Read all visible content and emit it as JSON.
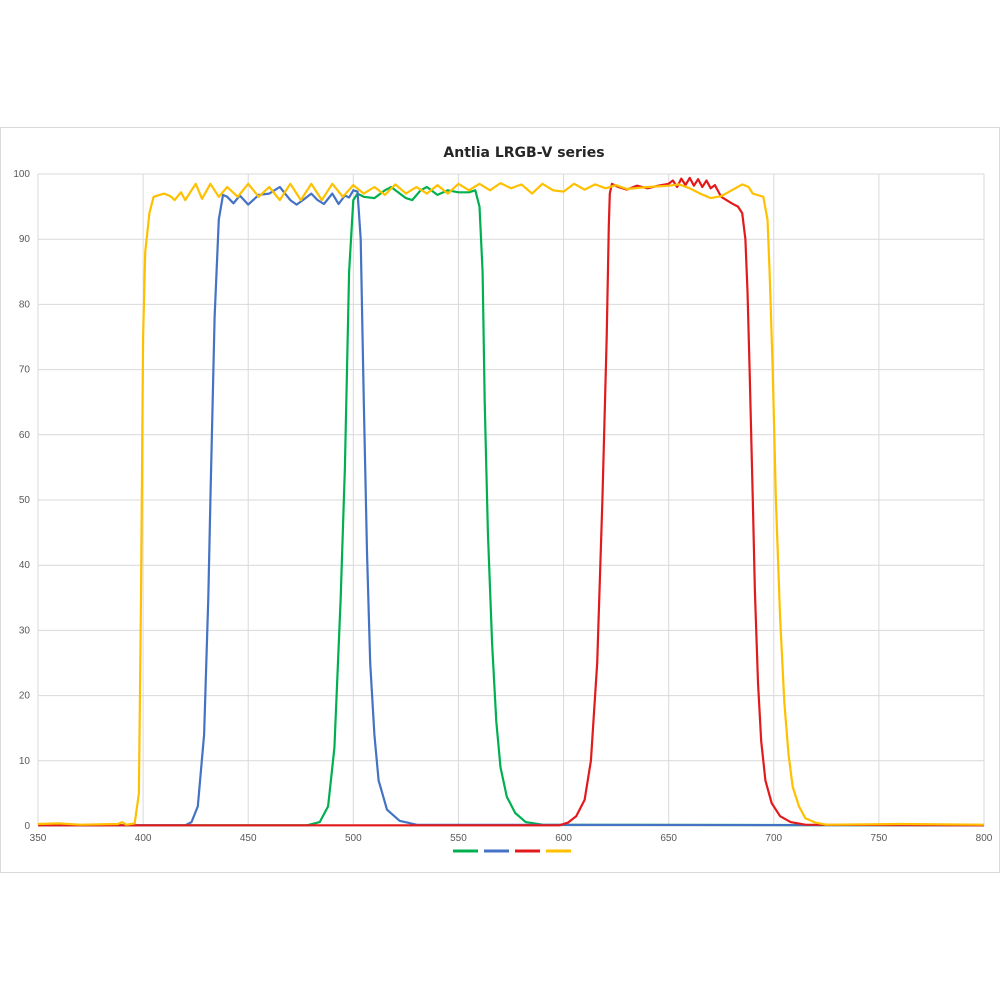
{
  "chart_data": {
    "type": "line",
    "title": "Antlia LRGB-V series",
    "xlabel": "",
    "ylabel": "",
    "xlim": [
      350,
      800
    ],
    "ylim": [
      0,
      100
    ],
    "xticks": [
      350,
      400,
      450,
      500,
      550,
      600,
      650,
      700,
      750,
      800
    ],
    "yticks": [
      0,
      10,
      20,
      30,
      40,
      50,
      60,
      70,
      80,
      90,
      100
    ],
    "grid": true,
    "legend": "bottom",
    "series": [
      {
        "color": "#00b050",
        "points": [
          [
            350,
            0.1
          ],
          [
            478,
            0.1
          ],
          [
            484,
            0.6
          ],
          [
            488,
            3
          ],
          [
            491,
            12
          ],
          [
            494,
            35
          ],
          [
            496,
            55
          ],
          [
            498,
            85
          ],
          [
            500,
            96
          ],
          [
            502,
            97
          ],
          [
            505,
            96.5
          ],
          [
            510,
            96.3
          ],
          [
            515,
            97.5
          ],
          [
            518,
            98
          ],
          [
            520,
            97.5
          ],
          [
            525,
            96.3
          ],
          [
            528,
            96
          ],
          [
            532,
            97.5
          ],
          [
            535,
            98
          ],
          [
            540,
            96.8
          ],
          [
            545,
            97.5
          ],
          [
            550,
            97.2
          ],
          [
            555,
            97.2
          ],
          [
            558,
            97.5
          ],
          [
            560,
            95
          ],
          [
            561.5,
            85
          ],
          [
            562.5,
            65
          ],
          [
            564,
            45
          ],
          [
            566,
            28
          ],
          [
            568,
            16
          ],
          [
            570,
            9
          ],
          [
            573,
            4.5
          ],
          [
            577,
            2
          ],
          [
            582,
            0.6
          ],
          [
            590,
            0.2
          ],
          [
            800,
            0.1
          ]
        ]
      },
      {
        "color": "#4472c4",
        "points": [
          [
            350,
            0.1
          ],
          [
            420,
            0.1
          ],
          [
            423,
            0.6
          ],
          [
            426,
            3
          ],
          [
            429,
            14
          ],
          [
            431,
            35
          ],
          [
            432,
            50
          ],
          [
            434,
            78
          ],
          [
            436,
            93
          ],
          [
            438,
            96.8
          ],
          [
            440,
            96.5
          ],
          [
            443,
            95.5
          ],
          [
            446,
            96.7
          ],
          [
            450,
            95.3
          ],
          [
            455,
            96.8
          ],
          [
            460,
            97
          ],
          [
            465,
            98
          ],
          [
            470,
            96
          ],
          [
            473,
            95.3
          ],
          [
            476,
            96
          ],
          [
            480,
            97
          ],
          [
            483,
            96
          ],
          [
            486,
            95.4
          ],
          [
            490,
            97
          ],
          [
            493,
            95.4
          ],
          [
            496,
            96.7
          ],
          [
            498,
            96.4
          ],
          [
            500,
            97.5
          ],
          [
            502,
            97.3
          ],
          [
            503.5,
            90
          ],
          [
            505,
            65
          ],
          [
            506.5,
            42
          ],
          [
            508,
            25
          ],
          [
            510,
            14
          ],
          [
            512,
            7
          ],
          [
            516,
            2.5
          ],
          [
            522,
            0.8
          ],
          [
            530,
            0.2
          ],
          [
            800,
            0.1
          ]
        ]
      },
      {
        "color": "#e31a1c",
        "points": [
          [
            350,
            0.1
          ],
          [
            598,
            0.1
          ],
          [
            602,
            0.5
          ],
          [
            606,
            1.5
          ],
          [
            610,
            4
          ],
          [
            613,
            10
          ],
          [
            616,
            25
          ],
          [
            618.5,
            50
          ],
          [
            620.5,
            75
          ],
          [
            621.5,
            92
          ],
          [
            622,
            97
          ],
          [
            623,
            98.5
          ],
          [
            626,
            98
          ],
          [
            630,
            97.6
          ],
          [
            635,
            98.2
          ],
          [
            640,
            97.8
          ],
          [
            645,
            98.2
          ],
          [
            650,
            98.5
          ],
          [
            652,
            99
          ],
          [
            654,
            98
          ],
          [
            656,
            99.3
          ],
          [
            658,
            98.3
          ],
          [
            660,
            99.4
          ],
          [
            662,
            98.2
          ],
          [
            664,
            99.2
          ],
          [
            666,
            98
          ],
          [
            668,
            99
          ],
          [
            670,
            97.8
          ],
          [
            672,
            98.3
          ],
          [
            675,
            96.5
          ],
          [
            680,
            95.5
          ],
          [
            683,
            95
          ],
          [
            685,
            94
          ],
          [
            686.5,
            90
          ],
          [
            687.5,
            82
          ],
          [
            688.5,
            70
          ],
          [
            690,
            50
          ],
          [
            691,
            36
          ],
          [
            692.5,
            22
          ],
          [
            694,
            13
          ],
          [
            696,
            7
          ],
          [
            699,
            3.5
          ],
          [
            703,
            1.5
          ],
          [
            708,
            0.6
          ],
          [
            715,
            0.2
          ],
          [
            800,
            0.1
          ]
        ]
      },
      {
        "color": "#ffc000",
        "points": [
          [
            350,
            0.3
          ],
          [
            360,
            0.4
          ],
          [
            370,
            0.2
          ],
          [
            388,
            0.3
          ],
          [
            390,
            0.6
          ],
          [
            392,
            0.2
          ],
          [
            396,
            0.4
          ],
          [
            398,
            5
          ],
          [
            399,
            35
          ],
          [
            400,
            75
          ],
          [
            401,
            88
          ],
          [
            403,
            94
          ],
          [
            405,
            96.5
          ],
          [
            410,
            97
          ],
          [
            413,
            96.6
          ],
          [
            415,
            96
          ],
          [
            418,
            97.2
          ],
          [
            420,
            96
          ],
          [
            425,
            98.5
          ],
          [
            428,
            96.2
          ],
          [
            432,
            98.5
          ],
          [
            436,
            96.5
          ],
          [
            440,
            98
          ],
          [
            445,
            96.5
          ],
          [
            450,
            98.5
          ],
          [
            455,
            96.5
          ],
          [
            460,
            98
          ],
          [
            465,
            96
          ],
          [
            470,
            98.5
          ],
          [
            475,
            96
          ],
          [
            480,
            98.5
          ],
          [
            485,
            96
          ],
          [
            490,
            98.5
          ],
          [
            495,
            96.5
          ],
          [
            500,
            98.3
          ],
          [
            505,
            97
          ],
          [
            510,
            98
          ],
          [
            515,
            96.8
          ],
          [
            520,
            98.4
          ],
          [
            525,
            97
          ],
          [
            530,
            98
          ],
          [
            535,
            97
          ],
          [
            540,
            98.3
          ],
          [
            545,
            97
          ],
          [
            550,
            98.5
          ],
          [
            555,
            97.5
          ],
          [
            560,
            98.5
          ],
          [
            565,
            97.5
          ],
          [
            570,
            98.6
          ],
          [
            575,
            97.8
          ],
          [
            580,
            98.4
          ],
          [
            585,
            97
          ],
          [
            590,
            98.5
          ],
          [
            595,
            97.5
          ],
          [
            600,
            97.3
          ],
          [
            605,
            98.5
          ],
          [
            610,
            97.6
          ],
          [
            615,
            98.4
          ],
          [
            620,
            97.8
          ],
          [
            625,
            98.3
          ],
          [
            630,
            97.7
          ],
          [
            640,
            98
          ],
          [
            650,
            98.2
          ],
          [
            655,
            98.4
          ],
          [
            660,
            97.8
          ],
          [
            665,
            97
          ],
          [
            670,
            96.3
          ],
          [
            675,
            96.6
          ],
          [
            680,
            97.5
          ],
          [
            685,
            98.4
          ],
          [
            688,
            98
          ],
          [
            690,
            97
          ],
          [
            693,
            96.7
          ],
          [
            695,
            96.5
          ],
          [
            697,
            93
          ],
          [
            698,
            85
          ],
          [
            699.5,
            70
          ],
          [
            701,
            50
          ],
          [
            703,
            32
          ],
          [
            705,
            19
          ],
          [
            707,
            11
          ],
          [
            709,
            6
          ],
          [
            712,
            3
          ],
          [
            715,
            1.2
          ],
          [
            720,
            0.5
          ],
          [
            725,
            0.2
          ],
          [
            760,
            0.3
          ],
          [
            800,
            0.2
          ]
        ]
      }
    ]
  }
}
